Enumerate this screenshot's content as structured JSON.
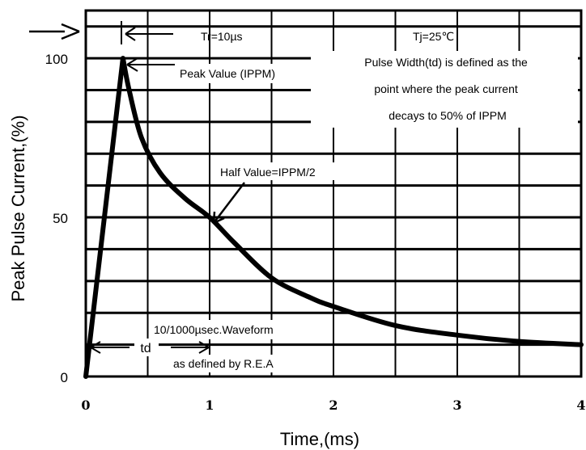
{
  "chart_data": {
    "type": "line",
    "title": "",
    "xlabel": "Time,(ms)",
    "ylabel": "Peak Pulse Current,(%)",
    "xlim": [
      0,
      4
    ],
    "ylim": [
      0,
      115
    ],
    "x_ticks": [
      "0",
      "1",
      "2",
      "3",
      "4"
    ],
    "y_ticks": [
      "0",
      "50",
      "100"
    ],
    "grid": true,
    "series": [
      {
        "color": "#000000",
        "x": [
          0,
          0.3,
          0.35,
          0.45,
          0.6,
          0.8,
          1.0,
          1.2,
          1.5,
          1.8,
          2.0,
          2.5,
          3.0,
          3.5,
          4.0
        ],
        "y": [
          0,
          100,
          90,
          75,
          64,
          56,
          50,
          42,
          31,
          25,
          22,
          16,
          13,
          11,
          10
        ]
      }
    ],
    "annotations": {
      "tr": "Tr=10µs",
      "tj": "Tj=25℃",
      "peak": "Peak Value (IPPM)",
      "pulse_width_1": "Pulse Width(td) is defined as the",
      "pulse_width_2": "point where the peak current",
      "pulse_width_3": "decays to 50% of IPPM",
      "half": "Half Value=IPPM/2",
      "waveform": "10/1000µsec.Waveform",
      "td": "td",
      "defined_by": "as defined by R.E.A"
    }
  }
}
